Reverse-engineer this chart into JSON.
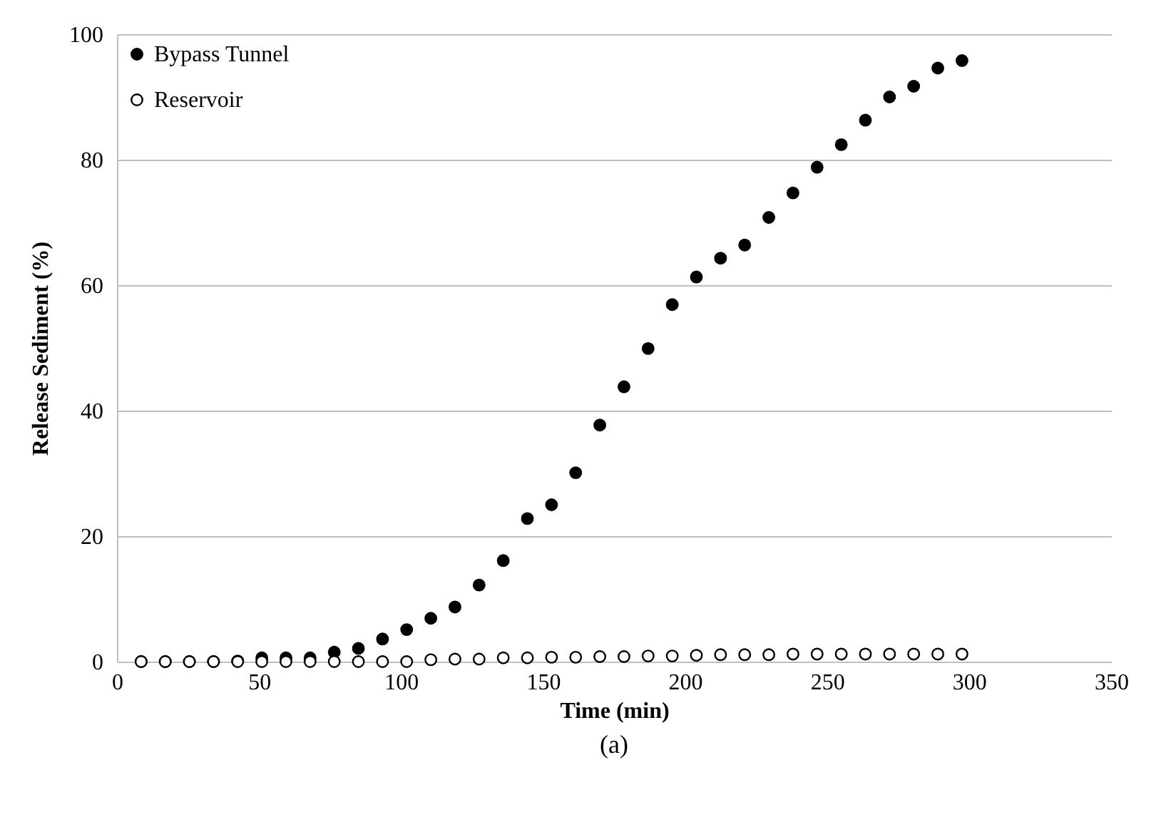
{
  "chart_data": {
    "type": "scatter",
    "xlabel": "Time (min)",
    "ylabel": "Release Sediment (%)",
    "annotations": [
      "(a)"
    ],
    "x": [
      8.5,
      17,
      25.5,
      34,
      42.5,
      51,
      59.5,
      68,
      76.5,
      85,
      93.5,
      102,
      110.5,
      119,
      127.5,
      136,
      144.5,
      153,
      161.5,
      170,
      178.5,
      187,
      195.5,
      204,
      212.5,
      221,
      229.5,
      238,
      246.5,
      255,
      263.5,
      272,
      280.5,
      289,
      297.5
    ],
    "series": [
      {
        "name": "Bypass Tunnel",
        "color": "#000000",
        "values": [
          0,
          0,
          0,
          0,
          0.1,
          0.6,
          0.6,
          0.6,
          1.5,
          2.1,
          3.6,
          5.1,
          6.9,
          8.7,
          12.2,
          16.1,
          22.8,
          25.0,
          30.1,
          37.7,
          43.8,
          49.9,
          56.9,
          61.3,
          64.3,
          66.4,
          70.8,
          74.7,
          78.8,
          82.4,
          86.3,
          90.0,
          91.7,
          94.6,
          95.8
        ]
      },
      {
        "name": "Reservoir",
        "color": "#000000",
        "values": [
          0,
          0,
          0,
          0,
          0,
          0,
          0,
          0,
          0,
          0,
          0,
          0,
          0.3,
          0.4,
          0.4,
          0.6,
          0.6,
          0.7,
          0.7,
          0.8,
          0.8,
          0.9,
          0.9,
          1.0,
          1.1,
          1.1,
          1.1,
          1.2,
          1.2,
          1.2,
          1.2,
          1.2,
          1.2,
          1.2,
          1.2
        ]
      }
    ],
    "xlim": [
      0,
      350
    ],
    "xticks": [
      0,
      50,
      100,
      150,
      200,
      250,
      300,
      350
    ],
    "ylim": [
      0,
      100
    ],
    "yticks": [
      0,
      20,
      40,
      60,
      80,
      100
    ],
    "grid": "y",
    "legend": "top left",
    "marker": "circle"
  }
}
